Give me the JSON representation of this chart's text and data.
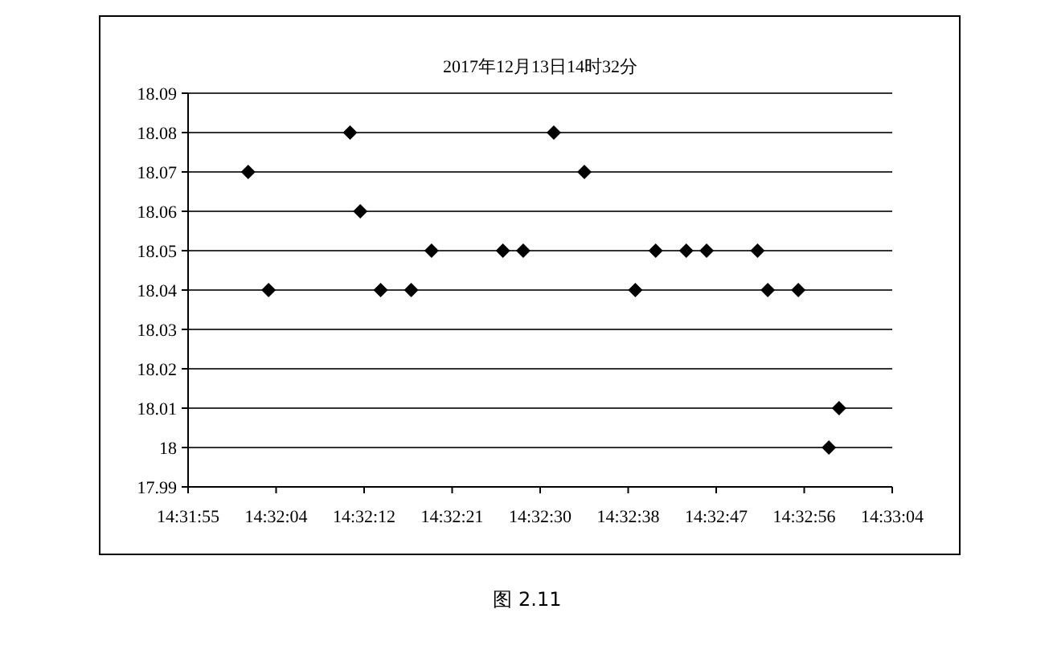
{
  "chart_data": {
    "type": "scatter",
    "title": "2017年12月13日14时32分",
    "annotations": [
      "图 2.11"
    ],
    "x": [
      14.533611,
      14.534167,
      14.536389,
      14.536667,
      14.537222,
      14.538056,
      14.538611,
      14.540556,
      14.541111,
      14.541944,
      14.542778,
      14.544167,
      14.544722,
      14.545556,
      14.546111,
      14.5475,
      14.547778,
      14.548611,
      14.549444,
      14.549722
    ],
    "series": [
      {
        "color": "#000000",
        "values": [
          18.07,
          18.04,
          18.08,
          18.06,
          18.04,
          18.04,
          18.05,
          18.05,
          18.05,
          18.08,
          18.07,
          18.04,
          18.05,
          18.05,
          18.05,
          18.05,
          18.04,
          18.04,
          18.0,
          18.01
        ]
      }
    ],
    "xlim": [
      14.531972,
      14.551172
    ],
    "xticks": [
      {
        "value": 14.531972,
        "label": "14:31:55"
      },
      {
        "value": 14.534372,
        "label": "14:32:04"
      },
      {
        "value": 14.536772,
        "label": "14:32:12"
      },
      {
        "value": 14.539172,
        "label": "14:32:21"
      },
      {
        "value": 14.541572,
        "label": "14:32:30"
      },
      {
        "value": 14.543972,
        "label": "14:32:38"
      },
      {
        "value": 14.546372,
        "label": "14:32:47"
      },
      {
        "value": 14.548772,
        "label": "14:32:56"
      },
      {
        "value": 14.551172,
        "label": "14:33:04"
      }
    ],
    "ylim": [
      17.99,
      18.09
    ],
    "yticks": [
      17.99,
      18,
      18.01,
      18.02,
      18.03,
      18.04,
      18.05,
      18.06,
      18.07,
      18.08,
      18.09
    ],
    "grid": "y",
    "marker": "diamond"
  }
}
